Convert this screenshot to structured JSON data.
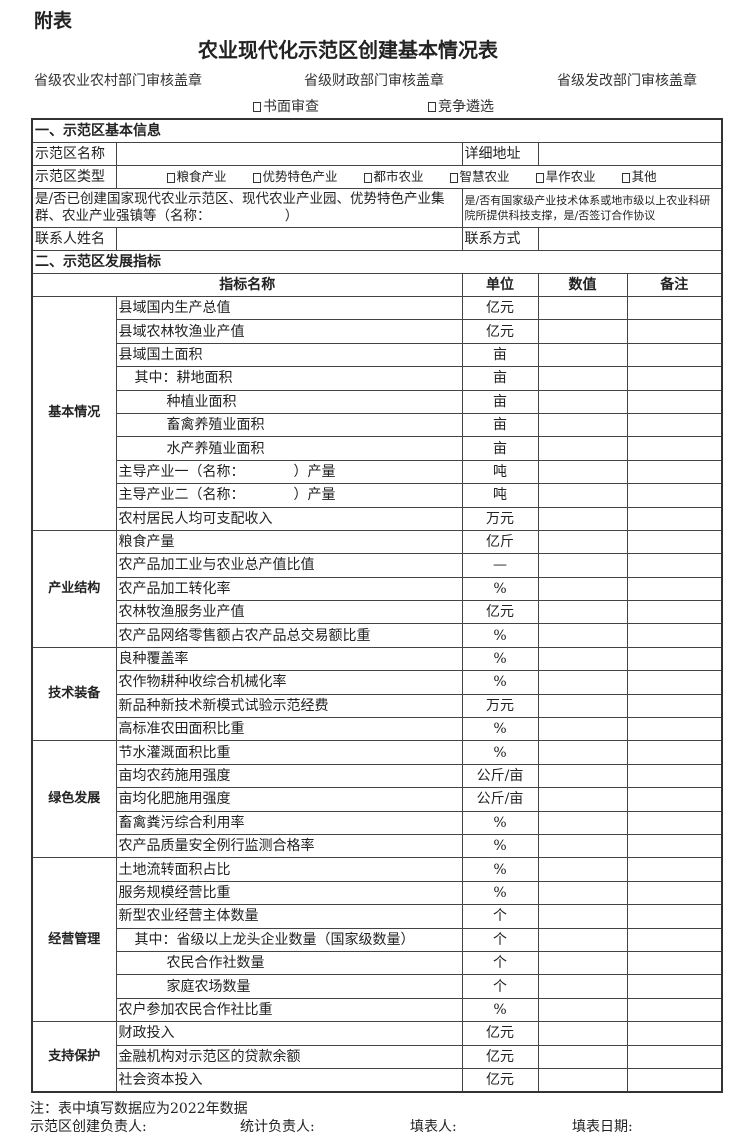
{
  "header": {
    "appendix": "附表",
    "title": "农业现代化示范区创建基本情况表",
    "stamps": [
      "省级农业农村部门审核盖章",
      "省级财政部门审核盖章",
      "省级发改部门审核盖章"
    ],
    "review_options": [
      "书面审查",
      "竞争遴选"
    ]
  },
  "basic": {
    "section_title": "一、示范区基本信息",
    "name_label": "示范区名称",
    "address_label": "详细地址",
    "type_label": "示范区类型",
    "types": [
      "粮食产业",
      "优势特色产业",
      "都市农业",
      "智慧农业",
      "旱作农业",
      "其他"
    ],
    "created_question": "是/否已创建国家现代农业示范区、现代农业产业园、优势特色产业集群、农业产业强镇等（名称：　　　　　　）",
    "support_question": "是/否有国家级产业技术体系或地市级以上农业科研院所提供科技支撑，是/否签订合作协议",
    "contact_label": "联系人姓名",
    "contact_method_label": "联系方式"
  },
  "indicators": {
    "section_title": "二、示范区发展指标",
    "columns": [
      "指标名称",
      "单位",
      "数值",
      "备注"
    ],
    "groups": [
      {
        "category": "基本情况",
        "rows": [
          [
            "县域国内生产总值",
            "亿元"
          ],
          [
            "县域农林牧渔业产值",
            "亿元"
          ],
          [
            "县域国土面积",
            "亩"
          ],
          [
            "其中：耕地面积",
            "亩"
          ],
          [
            "种植业面积",
            "亩"
          ],
          [
            "畜禽养殖业面积",
            "亩"
          ],
          [
            "水产养殖业面积",
            "亩"
          ],
          [
            "主导产业一（名称：　　　　）产量",
            "吨"
          ],
          [
            "主导产业二（名称：　　　　）产量",
            "吨"
          ],
          [
            "农村居民人均可支配收入",
            "万元"
          ]
        ]
      },
      {
        "category": "产业结构",
        "rows": [
          [
            "粮食产量",
            "亿斤"
          ],
          [
            "农产品加工业与农业总产值比值",
            "—"
          ],
          [
            "农产品加工转化率",
            "%"
          ],
          [
            "农林牧渔服务业产值",
            "亿元"
          ],
          [
            "农产品网络零售额占农产品总交易额比重",
            "%"
          ]
        ]
      },
      {
        "category": "技术装备",
        "rows": [
          [
            "良种覆盖率",
            "%"
          ],
          [
            "农作物耕种收综合机械化率",
            "%"
          ],
          [
            "新品种新技术新模式试验示范经费",
            "万元"
          ],
          [
            "高标准农田面积比重",
            "%"
          ]
        ]
      },
      {
        "category": "绿色发展",
        "rows": [
          [
            "节水灌溉面积比重",
            "%"
          ],
          [
            "亩均农药施用强度",
            "公斤/亩"
          ],
          [
            "亩均化肥施用强度",
            "公斤/亩"
          ],
          [
            "畜禽粪污综合利用率",
            "%"
          ],
          [
            "农产品质量安全例行监测合格率",
            "%"
          ]
        ]
      },
      {
        "category": "经营管理",
        "rows": [
          [
            "土地流转面积占比",
            "%"
          ],
          [
            "服务规模经营比重",
            "%"
          ],
          [
            "新型农业经营主体数量",
            "个"
          ],
          [
            "其中：省级以上龙头企业数量（国家级数量）",
            "个"
          ],
          [
            "农民合作社数量",
            "个"
          ],
          [
            "家庭农场数量",
            "个"
          ],
          [
            "农户参加农民合作社比重",
            "%"
          ]
        ]
      },
      {
        "category": "支持保护",
        "rows": [
          [
            "财政投入",
            "亿元"
          ],
          [
            "金融机构对示范区的贷款余额",
            "亿元"
          ],
          [
            "社会资本投入",
            "亿元"
          ]
        ]
      }
    ]
  },
  "footer": {
    "note": "注：表中填写数据应为2022年数据",
    "signatures": [
      "示范区创建负责人:",
      "统计负责人:",
      "填表人:",
      "填表日期:"
    ]
  }
}
